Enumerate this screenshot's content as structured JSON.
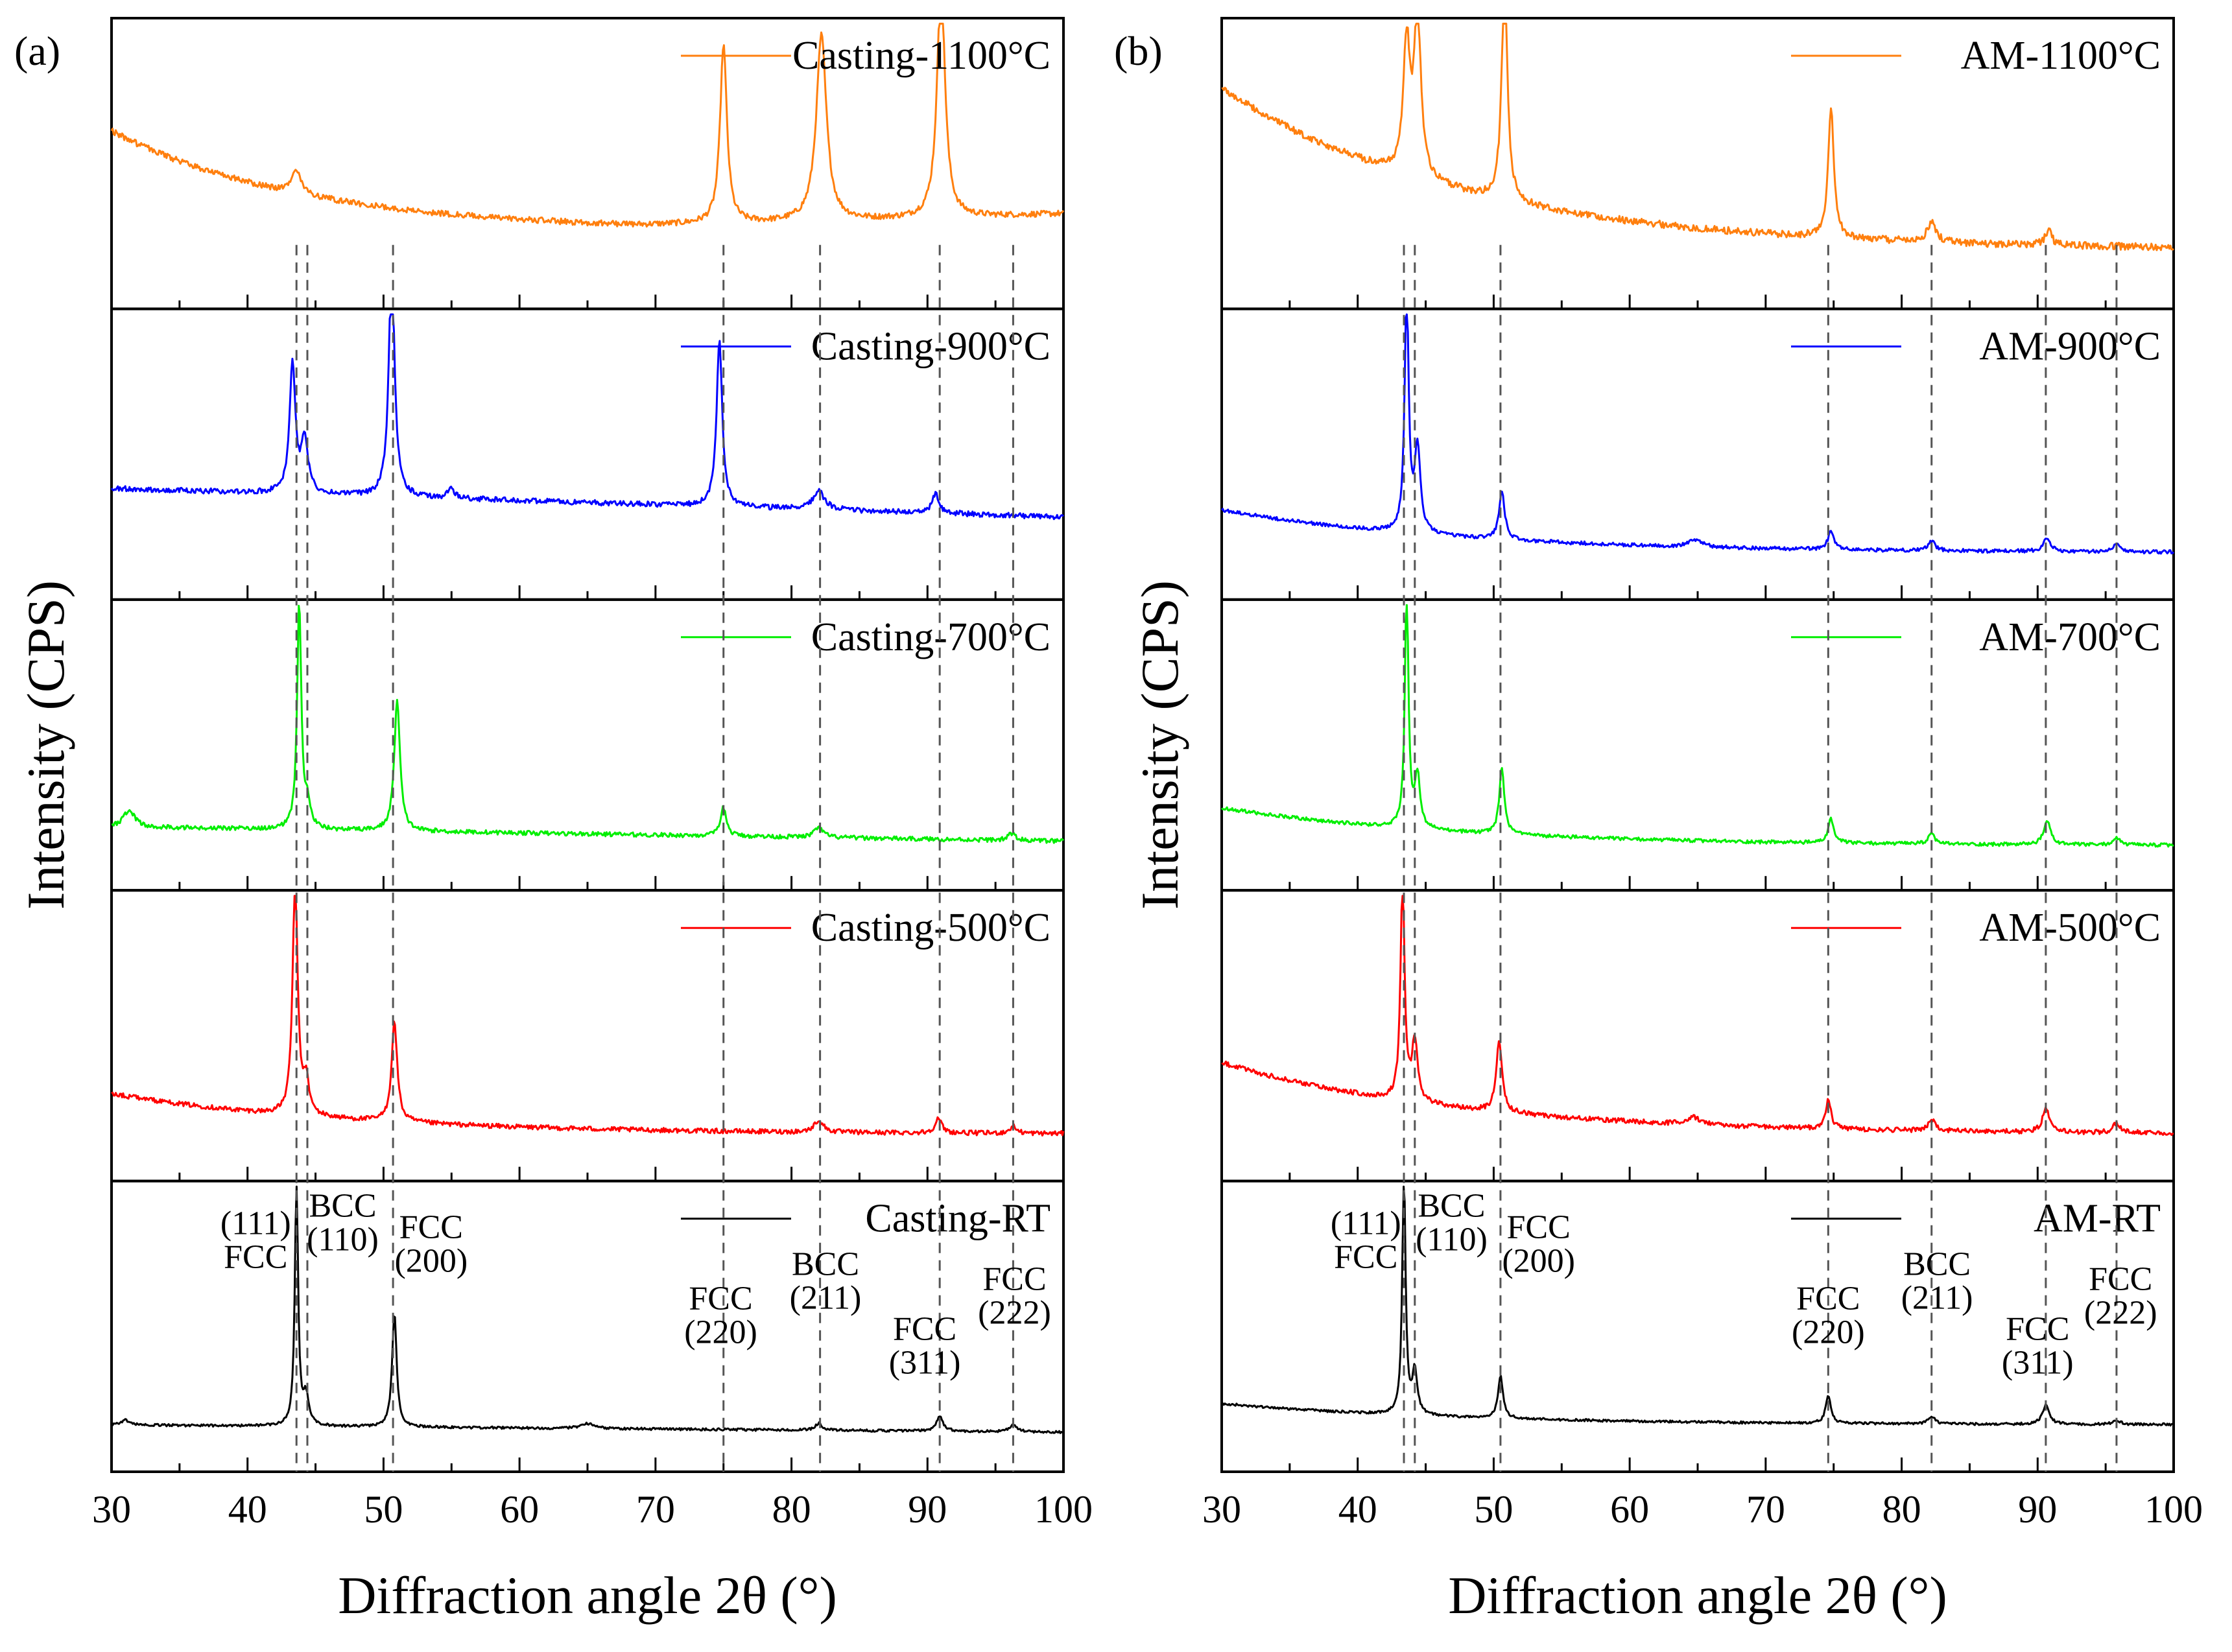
{
  "chart_data": [
    {
      "type": "line",
      "panel_label": "(a)",
      "xlabel": "Diffraction angle 2θ (°)",
      "ylabel": "Intensity (CPS)",
      "xlim": [
        30,
        100
      ],
      "xticks": [
        30,
        40,
        50,
        60,
        70,
        80,
        90,
        100
      ],
      "ref_lines": [
        43.6,
        44.4,
        50.7,
        75.0,
        82.1,
        90.9,
        96.3
      ],
      "series": [
        {
          "name": "Casting-1100°C",
          "color": "#ff7f0e",
          "trace": {
            "base_start": 0.6,
            "base_mid": 0.18,
            "base_end": 0.25,
            "curve": "decay",
            "noise": 0.025
          },
          "peaks": [
            [
              43.6,
              0.1,
              0.4
            ],
            [
              75.0,
              0.75,
              0.3
            ],
            [
              82.2,
              0.78,
              0.45
            ],
            [
              91.0,
              1.0,
              0.35
            ]
          ]
        },
        {
          "name": "Casting-900°C",
          "color": "#0000ff",
          "trace": {
            "base_start": 0.32,
            "base_mid": 0.2,
            "base_end": 0.2,
            "curve": "linear",
            "noise": 0.022
          },
          "peaks": [
            [
              43.3,
              0.55,
              0.25
            ],
            [
              44.2,
              0.22,
              0.3
            ],
            [
              50.6,
              1.0,
              0.25
            ],
            [
              55.0,
              0.04,
              0.3
            ],
            [
              74.7,
              0.7,
              0.25
            ],
            [
              82.0,
              0.08,
              0.5
            ],
            [
              90.6,
              0.08,
              0.3
            ]
          ]
        },
        {
          "name": "Casting-700°C",
          "color": "#00ee00",
          "trace": {
            "base_start": 0.12,
            "base_mid": 0.08,
            "base_end": 0.06,
            "curve": "linear",
            "noise": 0.018
          },
          "peaks": [
            [
              31.3,
              0.07,
              0.5
            ],
            [
              43.8,
              0.95,
              0.18
            ],
            [
              44.4,
              0.1,
              0.25
            ],
            [
              51.0,
              0.55,
              0.25
            ],
            [
              75.0,
              0.12,
              0.25
            ],
            [
              82.0,
              0.04,
              0.4
            ],
            [
              96.2,
              0.03,
              0.3
            ]
          ]
        },
        {
          "name": "Casting-500°C",
          "color": "#ff0000",
          "trace": {
            "base_start": 0.22,
            "base_mid": 0.12,
            "base_end": 0.05,
            "curve": "decay",
            "noise": 0.02
          },
          "peaks": [
            [
              43.5,
              1.0,
              0.22
            ],
            [
              44.3,
              0.14,
              0.25
            ],
            [
              50.8,
              0.42,
              0.25
            ],
            [
              82.0,
              0.05,
              0.4
            ],
            [
              90.8,
              0.06,
              0.3
            ],
            [
              96.3,
              0.03,
              0.3
            ]
          ]
        },
        {
          "name": "Casting-RT",
          "color": "#000000",
          "trace": {
            "base_start": 0.05,
            "base_mid": 0.03,
            "base_end": 0.02,
            "curve": "linear",
            "noise": 0.01
          },
          "peaks": [
            [
              31.0,
              0.02,
              0.4
            ],
            [
              43.6,
              1.0,
              0.15
            ],
            [
              44.3,
              0.12,
              0.25
            ],
            [
              50.8,
              0.48,
              0.2
            ],
            [
              65.0,
              0.02,
              0.6
            ],
            [
              82.0,
              0.03,
              0.3
            ],
            [
              90.9,
              0.06,
              0.3
            ],
            [
              96.3,
              0.03,
              0.3
            ]
          ]
        }
      ],
      "annotations": [
        {
          "line1": "(111)",
          "line2": "FCC",
          "x": 40.6,
          "align": "middle"
        },
        {
          "line1": "BCC",
          "line2": "(110)",
          "x": 47.0,
          "align": "middle"
        },
        {
          "line1": "FCC",
          "line2": "(200)",
          "x": 53.5,
          "align": "middle"
        },
        {
          "line1": "FCC",
          "line2": "(220)",
          "x": 74.8,
          "align": "middle"
        },
        {
          "line1": "BCC",
          "line2": "(211)",
          "x": 82.5,
          "align": "middle"
        },
        {
          "line1": "FCC",
          "line2": "(311)",
          "x": 89.8,
          "align": "middle"
        },
        {
          "line1": "FCC",
          "line2": "(222)",
          "x": 96.4,
          "align": "middle"
        }
      ]
    },
    {
      "type": "line",
      "panel_label": "(b)",
      "xlabel": "Diffraction angle 2θ (°)",
      "ylabel": "Intensity (CPS)",
      "xlim": [
        30,
        100
      ],
      "xticks": [
        30,
        40,
        50,
        60,
        70,
        80,
        90,
        100
      ],
      "ref_lines": [
        43.4,
        44.2,
        50.5,
        74.6,
        82.2,
        90.6,
        95.8
      ],
      "series": [
        {
          "name": "AM-1100°C",
          "color": "#ff7f0e",
          "trace": {
            "base_start": 0.78,
            "base_mid": 0.2,
            "base_end": 0.1,
            "curve": "decay",
            "noise": 0.03
          },
          "peaks": [
            [
              43.6,
              0.55,
              0.3
            ],
            [
              44.4,
              0.68,
              0.3
            ],
            [
              50.8,
              0.95,
              0.25
            ],
            [
              74.8,
              0.55,
              0.25
            ],
            [
              82.2,
              0.08,
              0.4
            ],
            [
              90.8,
              0.06,
              0.3
            ]
          ]
        },
        {
          "name": "AM-900°C",
          "color": "#0000ff",
          "trace": {
            "base_start": 0.23,
            "base_mid": 0.1,
            "base_end": 0.05,
            "curve": "decay",
            "noise": 0.015
          },
          "peaks": [
            [
              43.6,
              1.0,
              0.18
            ],
            [
              44.4,
              0.35,
              0.25
            ],
            [
              50.6,
              0.2,
              0.25
            ],
            [
              64.8,
              0.03,
              0.6
            ],
            [
              74.8,
              0.08,
              0.25
            ],
            [
              82.2,
              0.04,
              0.3
            ],
            [
              90.7,
              0.06,
              0.3
            ],
            [
              95.8,
              0.04,
              0.3
            ]
          ]
        },
        {
          "name": "AM-700°C",
          "color": "#00ee00",
          "trace": {
            "base_start": 0.2,
            "base_mid": 0.08,
            "base_end": 0.04,
            "curve": "decay",
            "noise": 0.015
          },
          "peaks": [
            [
              43.6,
              1.0,
              0.16
            ],
            [
              44.4,
              0.22,
              0.22
            ],
            [
              50.6,
              0.28,
              0.22
            ],
            [
              74.8,
              0.1,
              0.25
            ],
            [
              82.2,
              0.04,
              0.3
            ],
            [
              90.7,
              0.1,
              0.3
            ],
            [
              95.8,
              0.03,
              0.3
            ]
          ]
        },
        {
          "name": "AM-500°C",
          "color": "#ff0000",
          "trace": {
            "base_start": 0.35,
            "base_mid": 0.1,
            "base_end": 0.05,
            "curve": "decay",
            "noise": 0.02
          },
          "peaks": [
            [
              43.3,
              0.92,
              0.18
            ],
            [
              44.2,
              0.25,
              0.25
            ],
            [
              50.4,
              0.3,
              0.25
            ],
            [
              64.7,
              0.03,
              0.6
            ],
            [
              74.6,
              0.12,
              0.25
            ],
            [
              82.2,
              0.05,
              0.3
            ],
            [
              90.6,
              0.1,
              0.3
            ],
            [
              95.8,
              0.04,
              0.3
            ]
          ]
        },
        {
          "name": "AM-RT",
          "color": "#000000",
          "trace": {
            "base_start": 0.14,
            "base_mid": 0.07,
            "base_end": 0.05,
            "curve": "decay",
            "noise": 0.01
          },
          "peaks": [
            [
              43.4,
              1.0,
              0.15
            ],
            [
              44.2,
              0.18,
              0.22
            ],
            [
              50.5,
              0.18,
              0.22
            ],
            [
              74.6,
              0.12,
              0.22
            ],
            [
              82.2,
              0.03,
              0.3
            ],
            [
              90.6,
              0.08,
              0.3
            ],
            [
              95.8,
              0.02,
              0.3
            ]
          ]
        }
      ],
      "annotations": [
        {
          "line1": "(111)",
          "line2": "FCC",
          "x": 40.6,
          "align": "middle"
        },
        {
          "line1": "BCC",
          "line2": "(110)",
          "x": 46.9,
          "align": "middle"
        },
        {
          "line1": "FCC",
          "line2": "(200)",
          "x": 53.3,
          "align": "middle"
        },
        {
          "line1": "FCC",
          "line2": "(220)",
          "x": 74.6,
          "align": "middle"
        },
        {
          "line1": "BCC",
          "line2": "(211)",
          "x": 82.6,
          "align": "middle"
        },
        {
          "line1": "FCC",
          "line2": "(311)",
          "x": 90.0,
          "align": "middle"
        },
        {
          "line1": "FCC",
          "line2": "(222)",
          "x": 96.1,
          "align": "middle"
        }
      ]
    }
  ]
}
